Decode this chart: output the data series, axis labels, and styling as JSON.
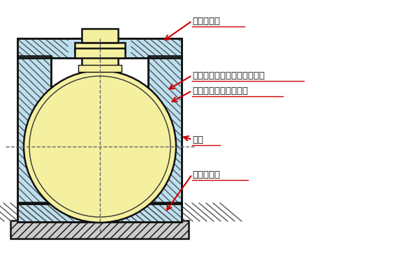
{
  "bg_color": "#ffffff",
  "light_blue": "#bde0f0",
  "dark": "#111111",
  "yellow_fill": "#f5f0a0",
  "hatch_gray": "#aaaaaa",
  "arrow_color": "#cc0000",
  "label_color": "#111111",
  "labels": {
    "top_slab": "上部スラブ",
    "inner_tank": "鉱板又はＦＲＰの内殼タンク",
    "outer_shell": "鉱板又はＦＲＰの外殼",
    "pillar": "支柱",
    "base_slab": "基礎スラブ"
  }
}
